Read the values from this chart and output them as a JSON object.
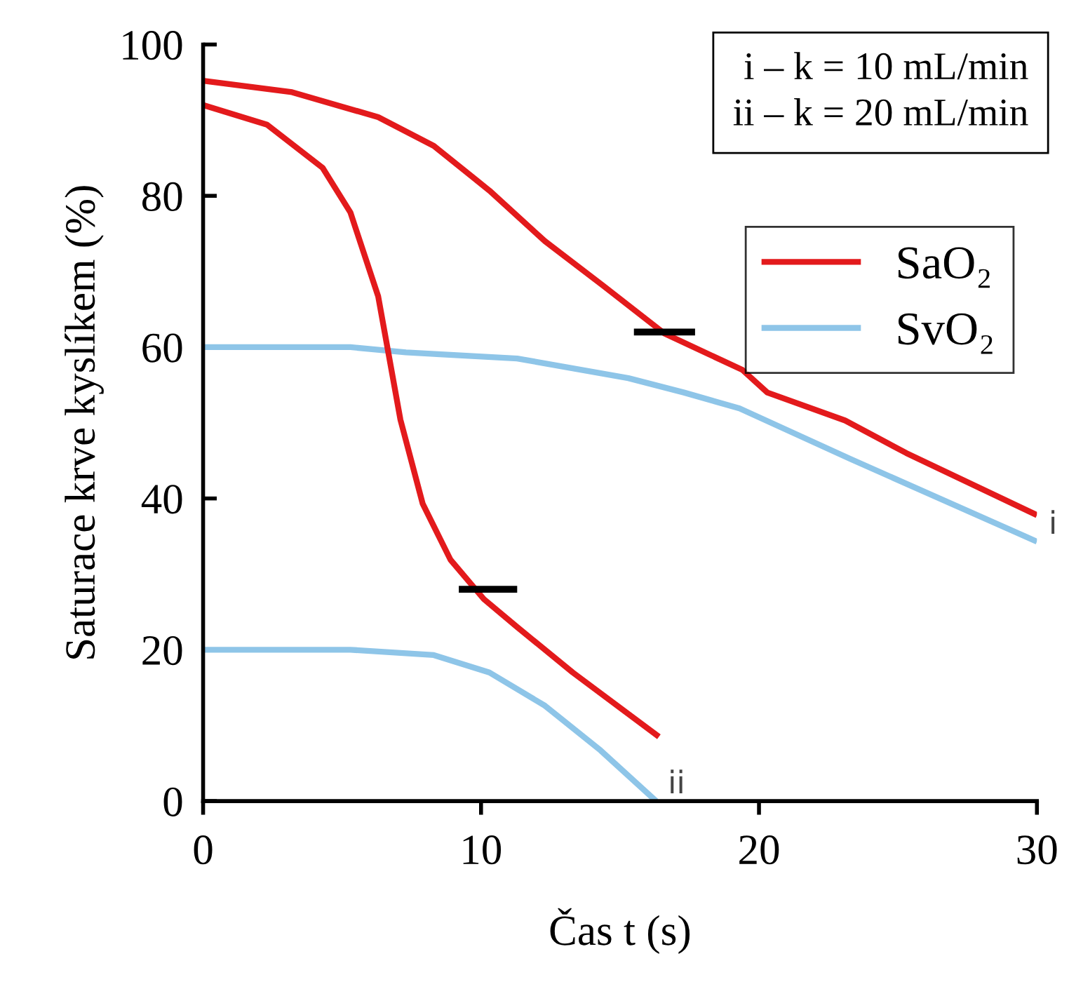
{
  "chart_data": {
    "type": "line",
    "xlabel": "Čas t (s)",
    "ylabel": "Saturace krve kyslíkem (%)",
    "xlim": [
      0,
      30
    ],
    "xticks": [
      0,
      10,
      20,
      30
    ],
    "ylim": [
      0,
      100
    ],
    "yticks": [
      0,
      20,
      40,
      60,
      80,
      100
    ],
    "grid": false,
    "legend": "top right",
    "marker": "none",
    "line_style": "solid",
    "series": [
      {
        "name": "SaO₂",
        "color": "#e31a1c",
        "x": [
          0,
          3.2,
          6.3,
          8.3,
          10.3,
          12.3,
          14.4,
          16.6,
          19.4,
          20.3,
          23.1,
          25.3,
          30
        ],
        "values": [
          95.2,
          93.7,
          90.4,
          86.6,
          80.7,
          74,
          68.1,
          61.8,
          57,
          54,
          50.3,
          46,
          37.8
        ]
      },
      {
        "name": "SvO₂",
        "color": "#8ec5e8",
        "x": [
          0,
          5.3,
          7.3,
          11.3,
          15.3,
          17.3,
          19.3,
          23.3,
          30
        ],
        "values": [
          60,
          60,
          59.3,
          58.5,
          55.9,
          54,
          51.9,
          45.2,
          34.3
        ]
      },
      {
        "color": "#e31a1c",
        "x": [
          0,
          2.3,
          4.3,
          5.3,
          6.3,
          7.1,
          7.9,
          8.9,
          10.1,
          11.3,
          13.3,
          16.4
        ],
        "values": [
          92,
          89.4,
          83.7,
          77.8,
          66.7,
          50.4,
          39.3,
          31.9,
          26.7,
          23,
          17,
          8.5
        ]
      },
      {
        "color": "#8ec5e8",
        "x": [
          0,
          5.3,
          8.3,
          10.3,
          12.3,
          14.3,
          16.3
        ],
        "values": [
          20,
          20,
          19.3,
          17,
          12.6,
          6.7,
          0
        ]
      },
      {
        "color": "#000000",
        "x": [
          15.5,
          17.7
        ],
        "values": [
          62,
          62
        ]
      },
      {
        "color": "#000000",
        "x": [
          9.2,
          11.3
        ],
        "values": [
          28,
          28
        ]
      }
    ],
    "annotations": [
      "i – k = 10 mL/min\nii – k = 20 mL/min",
      {
        "text": "i",
        "x": 30,
        "y": 34.3
      },
      {
        "text": "ii",
        "x": 16.3,
        "y": 0
      }
    ]
  }
}
